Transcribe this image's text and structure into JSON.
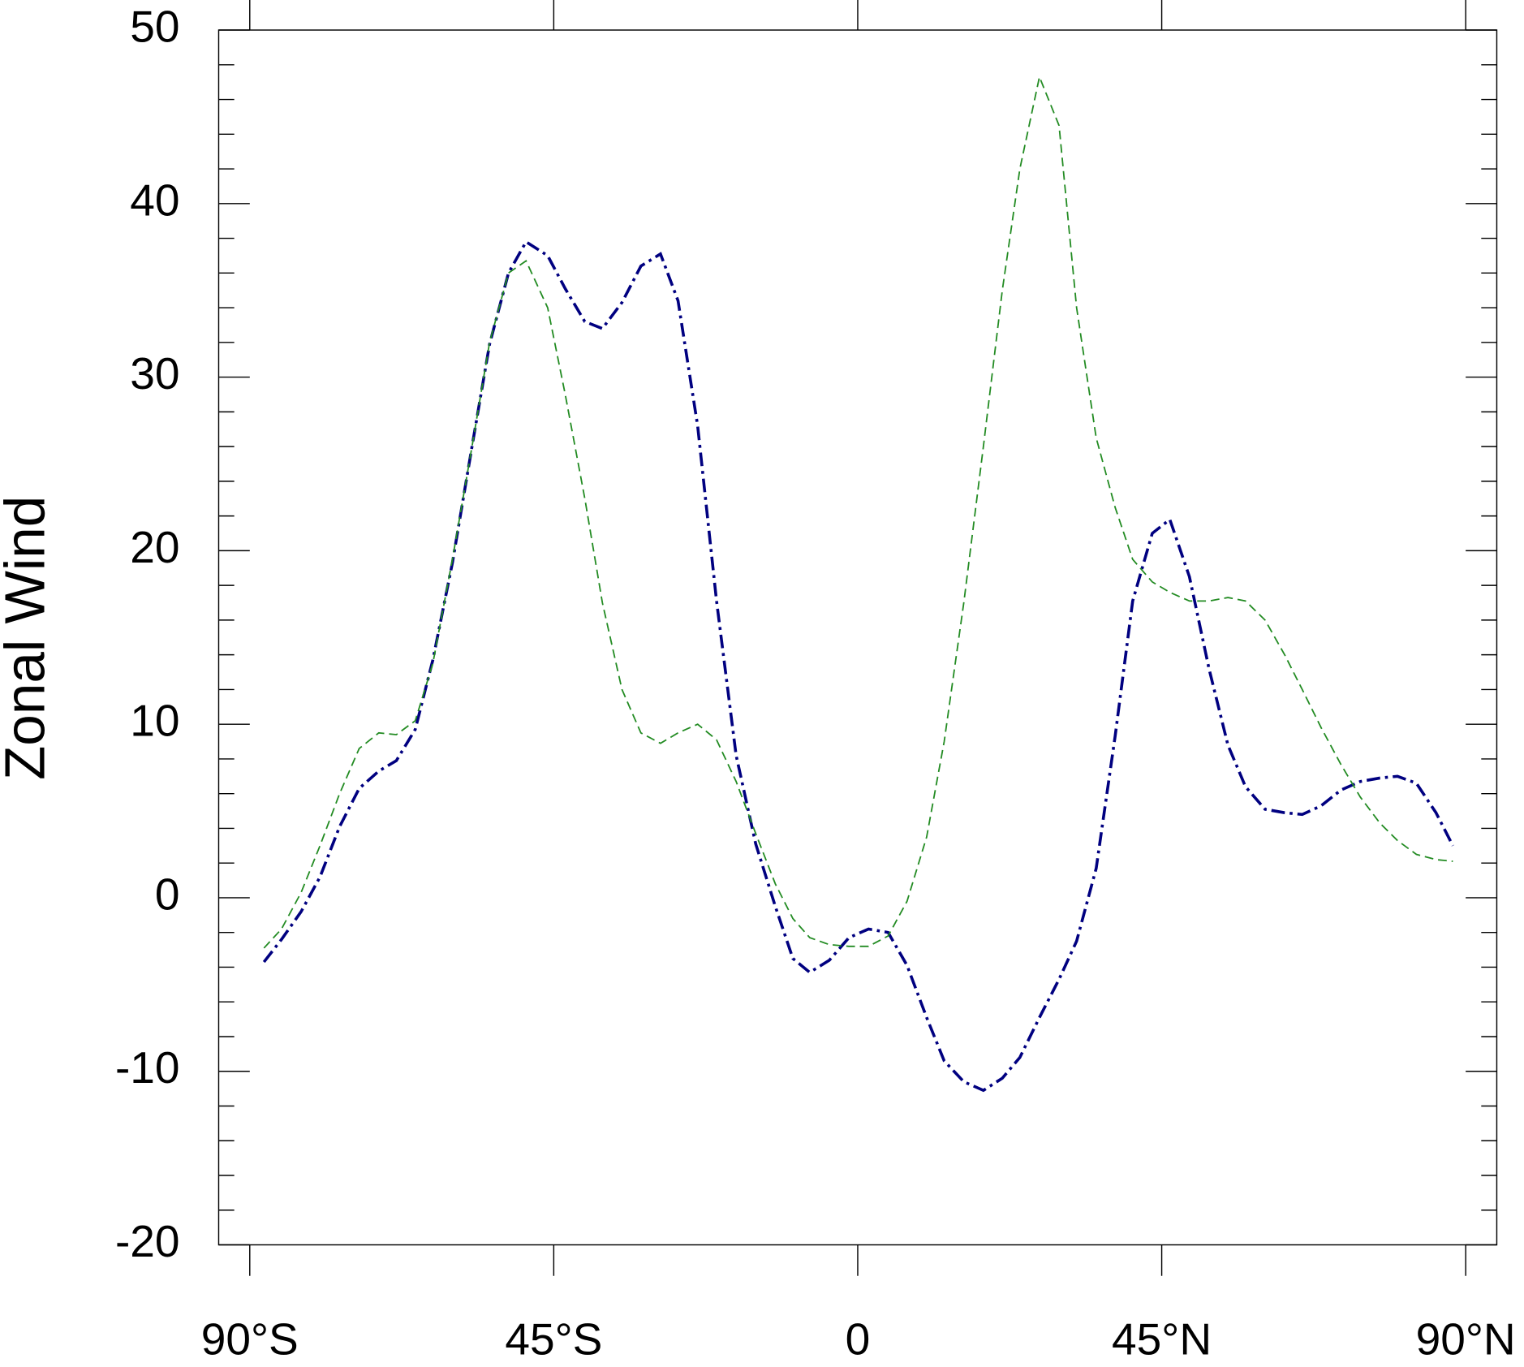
{
  "chart_data": {
    "type": "line",
    "ylabel": "Zonal Wind",
    "x": [
      -87.9,
      -85.3,
      -82.4,
      -79.6,
      -76.7,
      -73.8,
      -70.9,
      -68.3,
      -65.5,
      -62.9,
      -60,
      -57.1,
      -54.5,
      -51.7,
      -49.1,
      -45.9,
      -43.3,
      -40.4,
      -37.8,
      -34.9,
      -32.1,
      -29.2,
      -26.6,
      -23.7,
      -20.9,
      -18,
      -15.1,
      -12.2,
      -9.6,
      -7.1,
      -4.2,
      -1.3,
      1.6,
      4.5,
      7.3,
      10.2,
      12.8,
      15.7,
      18.6,
      21.4,
      24,
      26.9,
      29.8,
      32.4,
      35.3,
      38.1,
      40.7,
      43.6,
      46.2,
      49.1,
      52,
      54.8,
      57.4,
      60.3,
      63.2,
      65.8,
      68.6,
      71.5,
      74.4,
      77.3,
      79.9,
      82.7,
      85.6,
      88.1
    ],
    "series": [
      {
        "color": "#000080",
        "dash": "14 5 3 5",
        "width": 3,
        "values": [
          -3.7,
          -2.4,
          -0.8,
          1.2,
          4.1,
          6.3,
          7.3,
          7.9,
          9.7,
          13.7,
          19.3,
          26,
          31.9,
          36,
          37.8,
          37,
          35.1,
          33.2,
          32.8,
          34.3,
          36.4,
          37.1,
          34.4,
          27.2,
          17.1,
          8.2,
          3.1,
          -0.5,
          -3.5,
          -4.3,
          -3.6,
          -2.3,
          -1.8,
          -2,
          -3.9,
          -6.9,
          -9.4,
          -10.6,
          -11.1,
          -10.4,
          -9.2,
          -6.9,
          -4.7,
          -2.5,
          1.7,
          9.3,
          17.1,
          21,
          21.8,
          18.5,
          13.2,
          8.8,
          6.4,
          5.1,
          4.9,
          4.8,
          5.3,
          6.2,
          6.7,
          6.9,
          7,
          6.6,
          4.9,
          3
        ]
      },
      {
        "color": "#228b22",
        "dash": "9 5",
        "width": 1.5,
        "values": [
          -2.9,
          -1.8,
          0.3,
          3,
          6,
          8.6,
          9.5,
          9.4,
          10.2,
          13.5,
          19.5,
          26,
          32,
          36,
          36.7,
          34,
          29,
          23,
          17,
          12,
          9.5,
          8.9,
          9.5,
          10,
          9.1,
          6.7,
          3.7,
          0.8,
          -1.2,
          -2.3,
          -2.7,
          -2.8,
          -2.8,
          -2.2,
          -0.2,
          3.5,
          9,
          17,
          26,
          35,
          42,
          47.3,
          44.5,
          34,
          26.5,
          22.5,
          19.5,
          18.2,
          17.6,
          17.1,
          17.1,
          17.3,
          17.1,
          16,
          14,
          12,
          9.8,
          7.7,
          5.8,
          4.3,
          3.3,
          2.5,
          2.2,
          2.1
        ]
      }
    ],
    "xlim": [
      -94.6,
      94.6
    ],
    "xticks": [
      {
        "value": -90,
        "label": "90°S"
      },
      {
        "value": -45,
        "label": "45°S"
      },
      0,
      {
        "value": 45,
        "label": "45°N"
      },
      {
        "value": 90,
        "label": "90°N"
      }
    ],
    "ylim": [
      -20,
      50
    ],
    "yticks": [
      -20,
      -10,
      0,
      10,
      20,
      30,
      40,
      50
    ],
    "yminorticks": [
      -18,
      -16,
      -14,
      -12,
      -8,
      -6,
      -4,
      -2,
      2,
      4,
      6,
      8,
      12,
      14,
      16,
      18,
      22,
      24,
      26,
      28,
      32,
      34,
      36,
      38,
      42,
      44,
      46,
      48
    ]
  }
}
